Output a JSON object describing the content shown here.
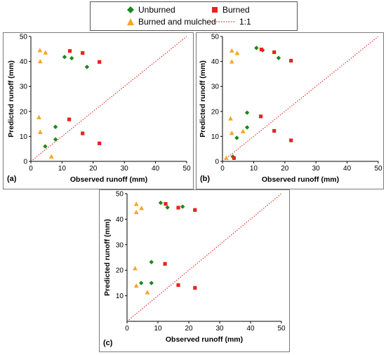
{
  "legend": {
    "items": [
      {
        "label": "Unburned",
        "marker": "diamond",
        "color": "#1a8a1a"
      },
      {
        "label": "Burned",
        "marker": "square",
        "color": "#e8231c"
      },
      {
        "label": "Burned and mulched",
        "marker": "triangle",
        "color": "#f5a623"
      },
      {
        "label": "1:1",
        "marker": "dotted-line",
        "color": "#e8231c"
      }
    ]
  },
  "chart_data": [
    {
      "type": "scatter",
      "panel_label": "(a)",
      "xlabel": "Observed runoff (mm)",
      "ylabel": "Predicted runoff (mm)",
      "xlim": [
        0,
        50
      ],
      "ylim": [
        0,
        50
      ],
      "xticks": [
        0,
        10,
        20,
        30,
        40,
        50
      ],
      "yticks": [
        0,
        10,
        20,
        30,
        40,
        50
      ],
      "series": [
        {
          "name": "Unburned",
          "points": [
            [
              10.8,
              41.8
            ],
            [
              13.1,
              41.3
            ],
            [
              18.0,
              37.8
            ],
            [
              4.6,
              6.0
            ],
            [
              7.9,
              8.8
            ],
            [
              7.9,
              13.8
            ]
          ]
        },
        {
          "name": "Burned",
          "points": [
            [
              12.5,
              44.2
            ],
            [
              16.6,
              43.4
            ],
            [
              22.0,
              39.8
            ],
            [
              12.3,
              16.8
            ],
            [
              16.6,
              11.2
            ],
            [
              22.0,
              7.2
            ]
          ]
        },
        {
          "name": "Burned and mulched",
          "points": [
            [
              2.9,
              44.4
            ],
            [
              4.7,
              43.5
            ],
            [
              3.0,
              40.0
            ],
            [
              2.6,
              17.6
            ],
            [
              3.0,
              11.7
            ],
            [
              6.6,
              1.9
            ]
          ]
        }
      ],
      "reference_line": "1:1"
    },
    {
      "type": "scatter",
      "panel_label": "(b)",
      "xlabel": "Observed runoff (mm)",
      "ylabel": "Predicted runoff (mm)",
      "xlim": [
        0,
        50
      ],
      "ylim": [
        0,
        50
      ],
      "xticks": [
        0,
        10,
        20,
        30,
        40,
        50
      ],
      "yticks": [
        0,
        10,
        20,
        30,
        40,
        50
      ],
      "series": [
        {
          "name": "Unburned",
          "points": [
            [
              10.9,
              45.4
            ],
            [
              12.9,
              44.5
            ],
            [
              18.0,
              41.4
            ],
            [
              7.9,
              19.5
            ],
            [
              7.9,
              13.6
            ],
            [
              4.6,
              9.4
            ],
            [
              3.3,
              1.9
            ]
          ]
        },
        {
          "name": "Burned",
          "points": [
            [
              12.5,
              44.8
            ],
            [
              16.6,
              43.7
            ],
            [
              22.0,
              40.3
            ],
            [
              12.3,
              18.0
            ],
            [
              16.6,
              12.2
            ],
            [
              22.0,
              8.4
            ],
            [
              3.7,
              1.3
            ]
          ]
        },
        {
          "name": "Burned and mulched",
          "points": [
            [
              3.0,
              44.3
            ],
            [
              4.7,
              43.3
            ],
            [
              3.0,
              39.9
            ],
            [
              2.6,
              17.1
            ],
            [
              3.0,
              11.3
            ],
            [
              6.6,
              12.0
            ],
            [
              1.2,
              1.3
            ]
          ]
        }
      ],
      "reference_line": "1:1"
    },
    {
      "type": "scatter",
      "panel_label": "(c)",
      "xlabel": "Observed runoff (mm)",
      "ylabel": "Predicted runoff (mm)",
      "xlim": [
        0,
        50
      ],
      "ylim": [
        0,
        50
      ],
      "xticks": [
        0,
        10,
        20,
        30,
        40,
        50
      ],
      "yticks": [
        10,
        20,
        30,
        40,
        50
      ],
      "series": [
        {
          "name": "Unburned",
          "points": [
            [
              10.9,
              46.4
            ],
            [
              13.1,
              44.6
            ],
            [
              18.0,
              44.9
            ],
            [
              7.9,
              23.2
            ],
            [
              7.9,
              15.0
            ],
            [
              4.6,
              15.0
            ]
          ]
        },
        {
          "name": "Burned",
          "points": [
            [
              12.5,
              46.0
            ],
            [
              16.6,
              44.5
            ],
            [
              22.0,
              43.6
            ],
            [
              12.3,
              22.5
            ],
            [
              16.6,
              14.2
            ],
            [
              22.0,
              13.1
            ]
          ]
        },
        {
          "name": "Burned and mulched",
          "points": [
            [
              3.0,
              45.9
            ],
            [
              4.7,
              44.3
            ],
            [
              3.0,
              42.7
            ],
            [
              2.6,
              20.7
            ],
            [
              3.0,
              13.9
            ],
            [
              6.6,
              11.3
            ]
          ]
        }
      ],
      "reference_line": "1:1"
    }
  ]
}
